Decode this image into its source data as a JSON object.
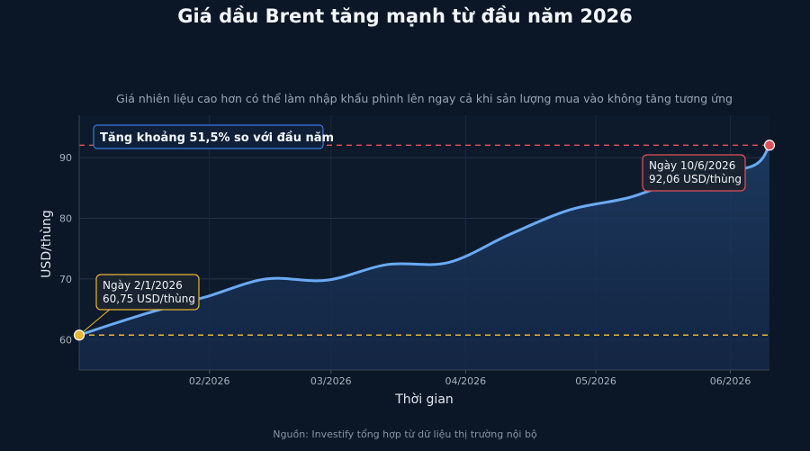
{
  "chart_data": {
    "type": "area",
    "title": "Giá dầu Brent tăng mạnh từ đầu năm 2026",
    "subtitle": "Giá nhiên liệu cao hơn có thể làm nhập khẩu phình lên ngay cả khi sản lượng mua vào không tăng tương ứng",
    "xlabel": "Thời gian",
    "ylabel": "USD/thùng",
    "ylim": [
      55,
      97
    ],
    "xlim": [
      "2026-01-02",
      "2026-06-10"
    ],
    "grid": true,
    "y_ticks": [
      60,
      70,
      80,
      90
    ],
    "x_ticks": [
      {
        "date": "2026-02-01",
        "label": "02/2026"
      },
      {
        "date": "2026-03-01",
        "label": "03/2026"
      },
      {
        "date": "2026-04-01",
        "label": "04/2026"
      },
      {
        "date": "2026-05-01",
        "label": "05/2026"
      },
      {
        "date": "2026-06-01",
        "label": "06/2026"
      }
    ],
    "series": [
      {
        "x": [
          "2026-01-02",
          "2026-01-16",
          "2026-01-31",
          "2026-02-14",
          "2026-02-28",
          "2026-03-14",
          "2026-03-28",
          "2026-04-11",
          "2026-04-25",
          "2026-05-09",
          "2026-05-23",
          "2026-06-06",
          "2026-06-10"
        ],
        "y": [
          60.75,
          64.0,
          67.0,
          70.0,
          69.8,
          72.4,
          72.7,
          77.3,
          81.4,
          83.5,
          87.0,
          88.6,
          92.06
        ],
        "color": "#6aaaf5"
      }
    ],
    "reference_lines": [
      {
        "value": 92.06,
        "color": "#e0525a"
      },
      {
        "value": 60.75,
        "color": "#e8b531"
      }
    ],
    "annotations": {
      "start": {
        "date": "2026-01-02",
        "value": 60.75,
        "line1": "Ngày 2/1/2026",
        "line2": "60,75 USD/thùng",
        "color": "#e8b531"
      },
      "end": {
        "date": "2026-06-10",
        "value": 92.06,
        "line1": "Ngày 10/6/2026",
        "line2": "92,06 USD/thùng",
        "color": "#e0525a"
      },
      "change_box": {
        "text": "Tăng khoảng 51,5% so với đầu năm",
        "color": "#3a78e0"
      }
    }
  },
  "footer": {
    "source": "Nguồn: Investify tổng hợp từ dữ liệu thị trường nội bộ"
  }
}
